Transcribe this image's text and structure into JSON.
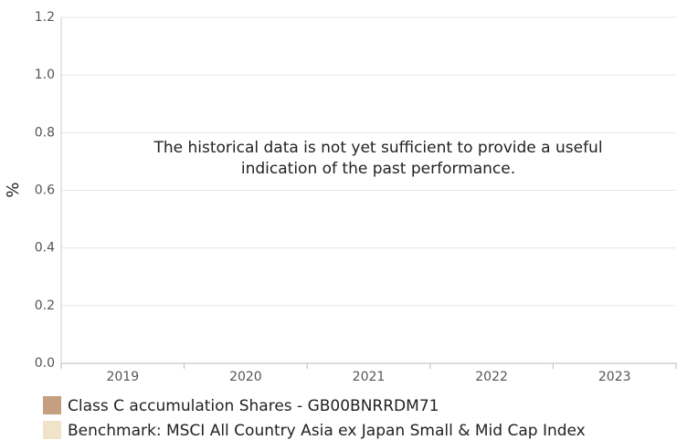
{
  "chart_data": {
    "type": "bar",
    "y_label": "%",
    "annotation": [
      "The historical data is not yet sufficient to provide a useful",
      "indication of the past performance."
    ],
    "categories": [
      "2019",
      "2020",
      "2021",
      "2022",
      "2023"
    ],
    "series": [
      {
        "name": "Class C accumulation Shares - GB00BNRRDM71",
        "color": "#c4a080",
        "values": [
          null,
          null,
          null,
          null,
          null
        ]
      },
      {
        "name": "Benchmark: MSCI All Country Asia ex Japan Small & Mid Cap Index",
        "color": "#f0e4c8",
        "values": [
          null,
          null,
          null,
          null,
          null
        ]
      }
    ],
    "ylim": [
      0,
      1.2
    ],
    "yticks": [
      {
        "value": 0,
        "label": "0.0"
      },
      0.2,
      0.4,
      0.6,
      0.8,
      {
        "value": 1,
        "label": "1.0"
      },
      1.2
    ],
    "grid": true
  }
}
